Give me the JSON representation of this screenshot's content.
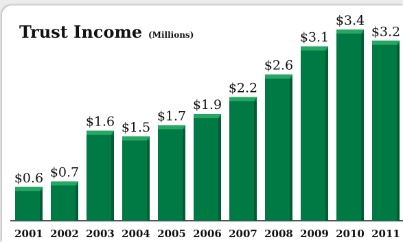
{
  "chart_data": {
    "type": "bar",
    "title": "Trust Income",
    "subtitle": "(Millions)",
    "categories": [
      "2001",
      "2002",
      "2003",
      "2004",
      "2005",
      "2006",
      "2007",
      "2008",
      "2009",
      "2010",
      "2011"
    ],
    "values": [
      0.6,
      0.7,
      1.6,
      1.5,
      1.7,
      1.9,
      2.2,
      2.6,
      3.1,
      3.4,
      3.2
    ],
    "data_labels": [
      "$0.6",
      "$0.7",
      "$1.6",
      "$1.5",
      "$1.7",
      "$1.9",
      "$2.2",
      "$2.6",
      "$3.1",
      "$3.4",
      "$3.2"
    ],
    "xlabel": "",
    "ylabel": "",
    "ylim": [
      0,
      3.4
    ],
    "grid": false,
    "bar_color": "#007a45",
    "bar_top_color": "#27a862",
    "bar_shadow_color": "#005c33"
  }
}
